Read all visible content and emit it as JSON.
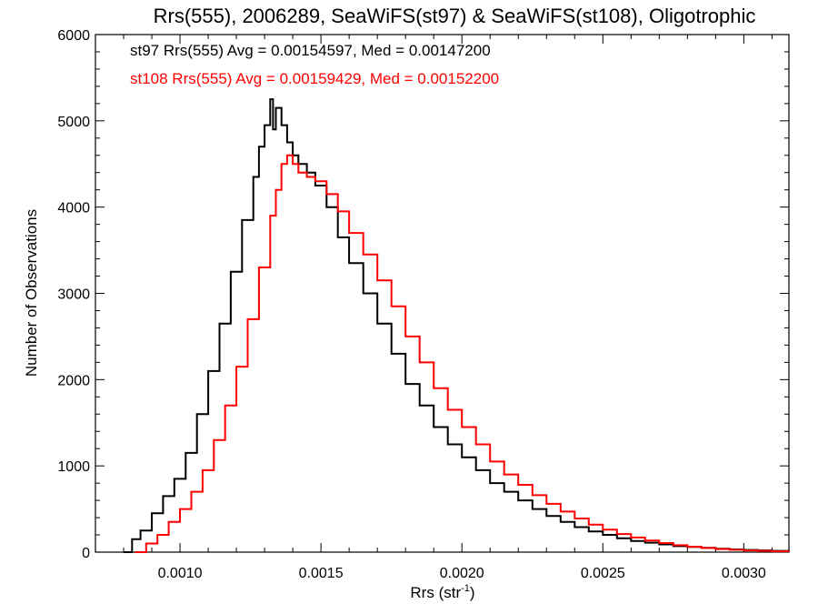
{
  "chart_data": {
    "type": "line",
    "title": "Rrs(555), 2006289, SeaWiFS(st97) & SeaWiFS(st108), Oligotrophic",
    "xlabel": "Rrs (str",
    "xlabel_sup": "-1",
    "xlabel_close": ")",
    "ylabel": "Number of Observations",
    "xlim": [
      0.0007,
      0.00316
    ],
    "ylim": [
      0,
      6000
    ],
    "x_ticks": [
      0.001,
      0.0015,
      0.002,
      0.0025,
      0.003
    ],
    "x_tick_labels": [
      "0.0010",
      "0.0015",
      "0.0020",
      "0.0025",
      "0.0030"
    ],
    "y_ticks": [
      0,
      1000,
      2000,
      3000,
      4000,
      5000,
      6000
    ],
    "y_tick_labels": [
      "0",
      "1000",
      "2000",
      "3000",
      "4000",
      "5000",
      "6000"
    ],
    "legend_position": "top-left",
    "series": [
      {
        "name": "st97",
        "legend_text": "st97 Rrs(555) Avg = 0.00154597, Med = 0.00147200",
        "color": "#000000",
        "x": [
          0.0008,
          0.00083,
          0.00086,
          0.0009,
          0.00094,
          0.00098,
          0.00102,
          0.00106,
          0.0011,
          0.00114,
          0.00118,
          0.00122,
          0.00126,
          0.00128,
          0.0013,
          0.00132,
          0.00133,
          0.00134,
          0.00136,
          0.00138,
          0.0014,
          0.00142,
          0.00145,
          0.00148,
          0.00152,
          0.00156,
          0.0016,
          0.00165,
          0.0017,
          0.00175,
          0.0018,
          0.00185,
          0.0019,
          0.00195,
          0.002,
          0.00205,
          0.0021,
          0.00215,
          0.0022,
          0.00225,
          0.0023,
          0.00235,
          0.0024,
          0.00245,
          0.0025,
          0.00255,
          0.0026,
          0.00265,
          0.0027,
          0.00275,
          0.0028,
          0.00285,
          0.0029,
          0.00295,
          0.003,
          0.00305,
          0.0031,
          0.00316
        ],
        "y": [
          0,
          150,
          250,
          450,
          650,
          850,
          1150,
          1600,
          2100,
          2650,
          3250,
          3850,
          4350,
          4700,
          4950,
          5250,
          4900,
          5150,
          4950,
          4750,
          4600,
          4500,
          4400,
          4250,
          4000,
          3650,
          3350,
          3000,
          2650,
          2300,
          1950,
          1700,
          1450,
          1250,
          1100,
          950,
          800,
          700,
          600,
          500,
          420,
          350,
          290,
          240,
          200,
          160,
          130,
          110,
          90,
          70,
          60,
          50,
          40,
          32,
          25,
          20,
          15,
          10
        ]
      },
      {
        "name": "st108",
        "legend_text": "st108 Rrs(555) Avg = 0.00159429, Med = 0.00152200",
        "color": "#ff0000",
        "x": [
          0.00084,
          0.00088,
          0.00092,
          0.00096,
          0.001,
          0.00104,
          0.00108,
          0.00112,
          0.00116,
          0.0012,
          0.00124,
          0.00128,
          0.00132,
          0.00134,
          0.00136,
          0.00138,
          0.0014,
          0.00142,
          0.00145,
          0.00148,
          0.00152,
          0.00156,
          0.0016,
          0.00165,
          0.0017,
          0.00175,
          0.0018,
          0.00185,
          0.0019,
          0.00195,
          0.002,
          0.00205,
          0.0021,
          0.00215,
          0.0022,
          0.00225,
          0.0023,
          0.00235,
          0.0024,
          0.00245,
          0.0025,
          0.00255,
          0.0026,
          0.00265,
          0.0027,
          0.00275,
          0.0028,
          0.00285,
          0.0029,
          0.00295,
          0.003,
          0.00305,
          0.0031,
          0.00316
        ],
        "y": [
          0,
          100,
          200,
          350,
          500,
          700,
          950,
          1300,
          1700,
          2150,
          2700,
          3300,
          3900,
          4200,
          4500,
          4600,
          4500,
          4400,
          4350,
          4300,
          4150,
          3950,
          3700,
          3450,
          3150,
          2850,
          2500,
          2200,
          1900,
          1650,
          1450,
          1250,
          1050,
          900,
          780,
          660,
          560,
          470,
          390,
          320,
          260,
          210,
          170,
          135,
          105,
          80,
          62,
          48,
          36,
          27,
          20,
          15,
          10,
          6
        ]
      }
    ]
  }
}
